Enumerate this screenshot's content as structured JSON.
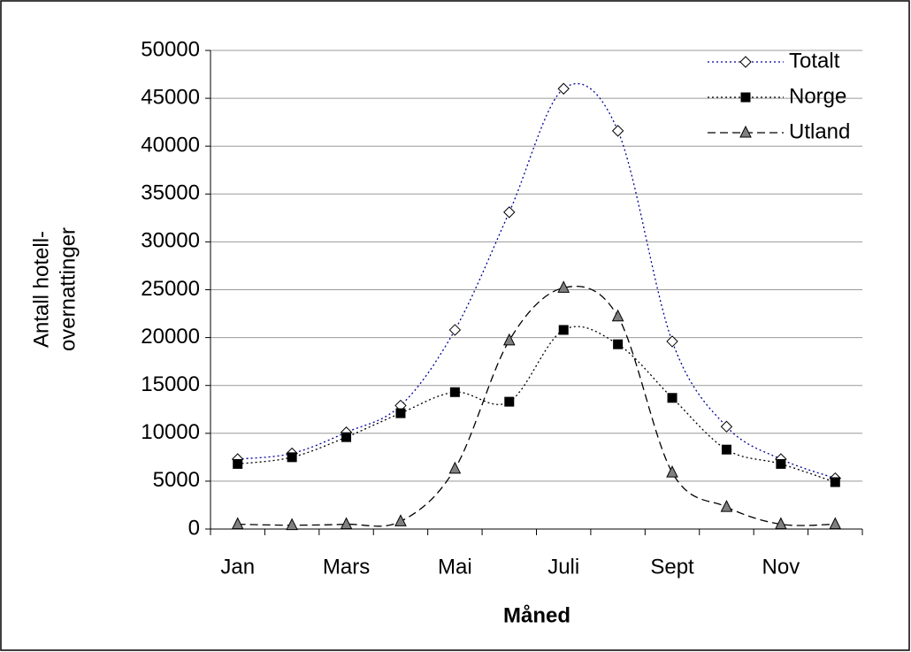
{
  "chart_data": {
    "type": "line",
    "x_label": "Måned",
    "y_label": [
      "Antall hotell-",
      "overnattinger"
    ],
    "categories": [
      "Jan",
      null,
      "Mars",
      null,
      "Mai",
      null,
      "Juli",
      null,
      "Sept",
      null,
      "Nov",
      null
    ],
    "series": [
      {
        "name": "Totalt",
        "color": "#000099",
        "marker": "diamond",
        "marker_fill": "#ffffff",
        "dash": "2,3",
        "values": [
          7300,
          7900,
          10100,
          12900,
          20800,
          33100,
          46000,
          41600,
          19600,
          10700,
          7300,
          5300
        ]
      },
      {
        "name": "Norge",
        "color": "#000000",
        "marker": "square",
        "marker_fill": "#000000",
        "dash": "2,3",
        "values": [
          6800,
          7500,
          9600,
          12100,
          14300,
          13300,
          20800,
          19300,
          13700,
          8300,
          6800,
          4900
        ]
      },
      {
        "name": "Utland",
        "color": "#000000",
        "marker": "triangle",
        "marker_fill": "#808080",
        "dash": "9,5",
        "values": [
          500,
          400,
          500,
          800,
          6300,
          19700,
          25200,
          22200,
          5900,
          2300,
          500,
          500
        ]
      }
    ],
    "ylim": [
      0,
      50000
    ],
    "yticks": [
      0,
      5000,
      10000,
      15000,
      20000,
      25000,
      30000,
      35000,
      40000,
      45000,
      50000
    ],
    "grid": true,
    "legend": "upper right"
  }
}
